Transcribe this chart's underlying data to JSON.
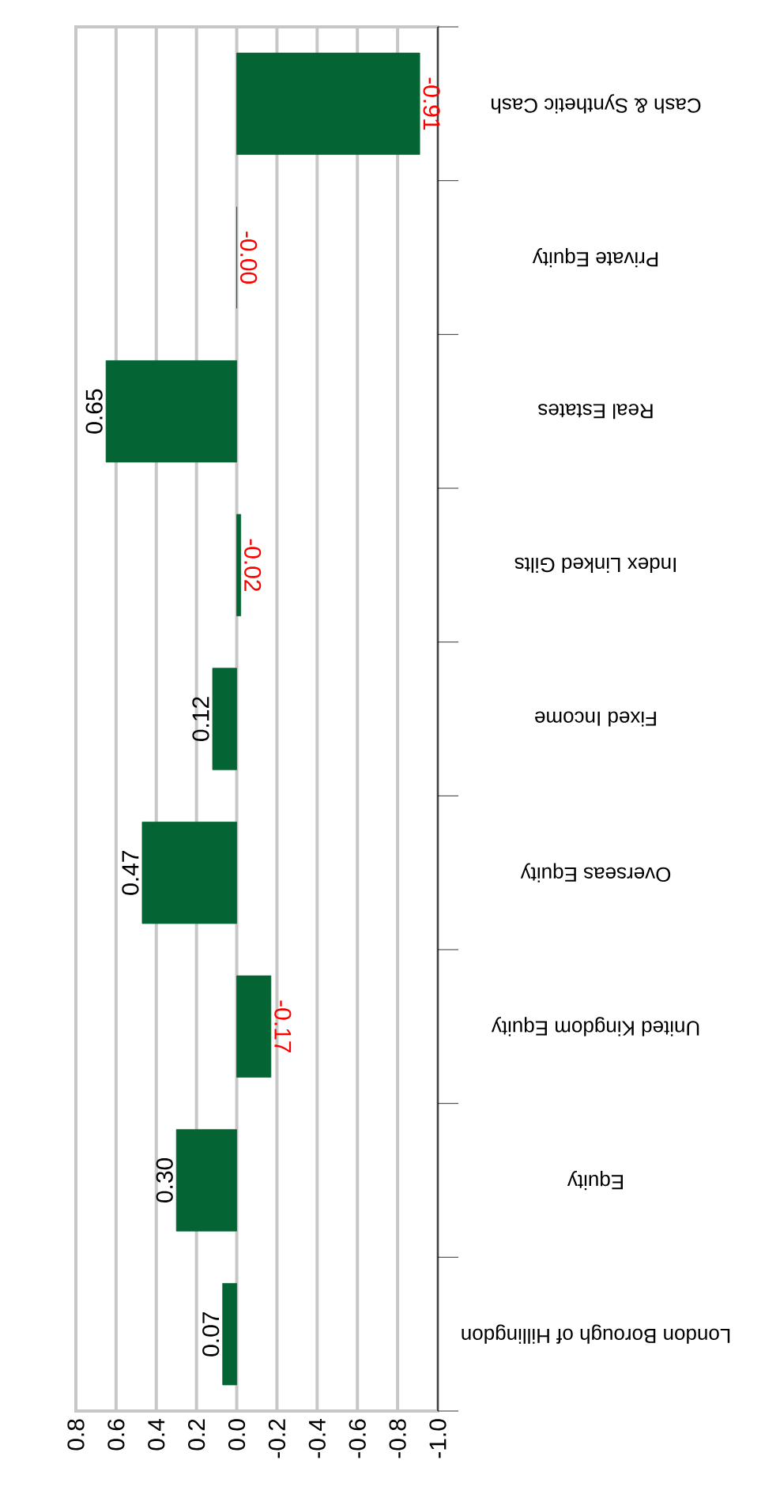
{
  "chart_data": {
    "type": "bar",
    "orientation": "horizontal",
    "categories": [
      "Cash & Synthetic Cash",
      "Private Equity",
      "Real Estates",
      "Index Linked Gilts",
      "Fixed Income",
      "Overseas Equity",
      "United Kingdom Equity",
      "Equity",
      "London Borough of Hillingdon"
    ],
    "values": [
      -0.91,
      -0.0,
      0.65,
      -0.02,
      0.12,
      0.47,
      -0.17,
      0.3,
      0.07
    ],
    "value_labels": [
      "-0.91",
      "-0.00",
      "0.65",
      "-0.02",
      "0.12",
      "0.47",
      "-0.17",
      "0.30",
      "0.07"
    ],
    "color": "#056433",
    "xlim": [
      0.8,
      -1.0
    ],
    "xticks": [
      {
        "value": 0.8,
        "label": "0.8"
      },
      {
        "value": 0.6,
        "label": "0.6"
      },
      {
        "value": 0.4,
        "label": "0.4"
      },
      {
        "value": 0.2,
        "label": "0.2"
      },
      {
        "value": 0.0,
        "label": "0.0"
      },
      {
        "value": -0.2,
        "label": "-0.2"
      },
      {
        "value": -0.4,
        "label": "-0.4"
      },
      {
        "value": -0.6,
        "label": "-0.6"
      },
      {
        "value": -0.8,
        "label": "-0.8"
      },
      {
        "value": -1.0,
        "label": "-1.0"
      }
    ],
    "grid": "x"
  }
}
